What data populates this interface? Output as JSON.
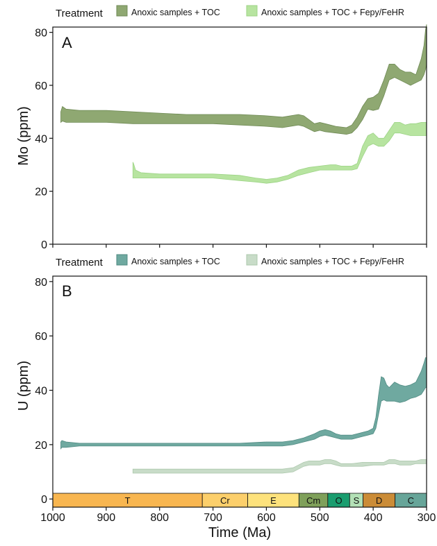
{
  "colors": {
    "mo_toc": "#8fa872",
    "mo_toc_stroke": "#6f8a55",
    "mo_fe": "#b7e4a0",
    "mo_fe_stroke": "#9cd385",
    "u_toc": "#6fa9a0",
    "u_toc_stroke": "#4f8a82",
    "u_fe": "#c8dcc8",
    "u_fe_stroke": "#adc8ad"
  },
  "chart_data": [
    {
      "type": "area",
      "panel_label": "A",
      "legend_title": "Treatment",
      "legend_position": "top",
      "ylabel": "Mo (ppm)",
      "xlim": [
        1000,
        300
      ],
      "ylim": [
        0,
        82
      ],
      "yticks": [
        "0",
        "20",
        "40",
        "60",
        "80"
      ],
      "ytick_values": [
        0,
        20,
        40,
        60,
        80
      ],
      "xtick_values": [
        1000,
        900,
        800,
        700,
        600,
        500,
        400,
        300
      ],
      "grid": false,
      "series": [
        {
          "name": "Anoxic samples + TOC",
          "color_key": "mo_toc",
          "x": [
            985,
            982,
            975,
            950,
            900,
            850,
            800,
            750,
            700,
            650,
            600,
            570,
            540,
            530,
            520,
            510,
            500,
            490,
            470,
            450,
            440,
            430,
            420,
            410,
            400,
            390,
            380,
            370,
            360,
            350,
            340,
            330,
            320,
            310,
            305,
            302,
            300
          ],
          "upper": [
            50,
            52,
            51,
            50.5,
            50.5,
            50,
            49.5,
            49,
            49,
            49,
            48.5,
            48,
            49,
            48.5,
            47,
            45.5,
            46,
            45.5,
            44.5,
            44,
            45,
            48,
            52,
            55,
            55.5,
            57,
            62,
            68,
            68,
            66,
            65,
            65,
            64,
            70,
            75,
            81,
            83
          ],
          "lower": [
            46,
            46.5,
            46,
            46,
            46,
            45.5,
            45.5,
            45.5,
            45.5,
            45,
            44.5,
            44,
            45,
            44.5,
            43.5,
            42.5,
            43,
            42.5,
            42,
            41.5,
            42,
            44,
            47,
            51,
            50.5,
            51,
            56,
            62,
            63,
            62,
            61,
            60,
            61,
            62,
            64,
            66,
            68
          ]
        },
        {
          "name": "Anoxic samples + TOC + Fepy/FeHR",
          "color_key": "mo_fe",
          "x": [
            850,
            848,
            845,
            835,
            800,
            750,
            700,
            650,
            620,
            600,
            580,
            560,
            540,
            520,
            500,
            480,
            470,
            460,
            450,
            440,
            430,
            420,
            410,
            400,
            390,
            380,
            370,
            360,
            350,
            340,
            330,
            320,
            310,
            300
          ],
          "upper": [
            31,
            30,
            28,
            27,
            26.5,
            26.5,
            26.5,
            26,
            25,
            24.5,
            25,
            26,
            28,
            29,
            29.5,
            30,
            30,
            29.5,
            29.5,
            29.5,
            30.5,
            37,
            41,
            42,
            40,
            40,
            43,
            46,
            46,
            45,
            45.5,
            45.5,
            46,
            46
          ],
          "lower": [
            25,
            25,
            25,
            25,
            25,
            25,
            25,
            24,
            23.5,
            23,
            23.5,
            24.5,
            26,
            27,
            28,
            28,
            28,
            28,
            28,
            28,
            28.5,
            33,
            37,
            38,
            37,
            37,
            39,
            42,
            42,
            41.5,
            41,
            41,
            41,
            41
          ]
        }
      ]
    },
    {
      "type": "area",
      "panel_label": "B",
      "legend_title": "Treatment",
      "legend_position": "top",
      "ylabel": "U (ppm)",
      "xlabel": "Time (Ma)",
      "xlim": [
        1000,
        300
      ],
      "ylim": [
        -3,
        82
      ],
      "yticks": [
        "0",
        "20",
        "40",
        "60",
        "80"
      ],
      "ytick_values": [
        0,
        20,
        40,
        60,
        80
      ],
      "xticks": [
        "1000",
        "900",
        "800",
        "700",
        "600",
        "500",
        "400",
        "300"
      ],
      "xtick_values": [
        1000,
        900,
        800,
        700,
        600,
        500,
        400,
        300
      ],
      "grid": false,
      "series": [
        {
          "name": "Anoxic samples + TOC",
          "color_key": "u_toc",
          "x": [
            985,
            983,
            975,
            950,
            900,
            850,
            800,
            750,
            700,
            650,
            600,
            570,
            550,
            530,
            510,
            500,
            490,
            480,
            470,
            460,
            450,
            440,
            430,
            420,
            410,
            400,
            395,
            390,
            385,
            380,
            375,
            370,
            360,
            350,
            340,
            330,
            320,
            310,
            305,
            302,
            300
          ],
          "upper": [
            21,
            21.5,
            21,
            20.5,
            20.5,
            20.5,
            20.5,
            20.5,
            20.5,
            20.5,
            21,
            21,
            21.5,
            22.5,
            24,
            25,
            25.5,
            25,
            24,
            23.5,
            23.5,
            23.5,
            24,
            24.5,
            25,
            26,
            30,
            38,
            45,
            44.5,
            42,
            41,
            43,
            42,
            41.5,
            42,
            43,
            47,
            50,
            52,
            52
          ],
          "lower": [
            18.5,
            19,
            19,
            19.5,
            19.5,
            19.5,
            19.5,
            19.5,
            19.5,
            19.5,
            19.5,
            19.5,
            20,
            21,
            22,
            23,
            23.5,
            23,
            22.5,
            22,
            22,
            22,
            22.5,
            23,
            23.5,
            24,
            26,
            31,
            36,
            36.5,
            36,
            36,
            36,
            35.5,
            36,
            37,
            37.5,
            38.5,
            40,
            41,
            41
          ]
        },
        {
          "name": "Anoxic samples + TOC + Fepy/FeHR",
          "color_key": "u_fe",
          "x": [
            850,
            848,
            800,
            750,
            700,
            650,
            600,
            570,
            550,
            540,
            530,
            520,
            510,
            500,
            490,
            480,
            470,
            460,
            440,
            420,
            400,
            380,
            370,
            360,
            350,
            340,
            330,
            320,
            310,
            300
          ],
          "upper": [
            11,
            11,
            11,
            11,
            11,
            11,
            11,
            11,
            11.5,
            12.5,
            13.5,
            14,
            14,
            14,
            14.5,
            14.5,
            14,
            13,
            13,
            13.5,
            13.5,
            13.5,
            14.5,
            14.5,
            14,
            14,
            14,
            14,
            14.5,
            14.5
          ],
          "lower": [
            9.5,
            9.5,
            9.5,
            9.5,
            9.5,
            9.5,
            9.5,
            9.5,
            10,
            11,
            12,
            12.5,
            12.5,
            12.5,
            13,
            13,
            12.5,
            12,
            12,
            12,
            12.5,
            12.5,
            13,
            13,
            12.5,
            12.5,
            12.5,
            13,
            13,
            13
          ]
        }
      ],
      "timescale": [
        {
          "label": "T",
          "start": 1000,
          "end": 720,
          "color": "#f8b650"
        },
        {
          "label": "Cr",
          "start": 720,
          "end": 635,
          "color": "#fccf6b"
        },
        {
          "label": "E",
          "start": 635,
          "end": 539,
          "color": "#fde27c"
        },
        {
          "label": "Cm",
          "start": 539,
          "end": 485,
          "color": "#7fa05a"
        },
        {
          "label": "O",
          "start": 485,
          "end": 444,
          "color": "#1a9d6f"
        },
        {
          "label": "S",
          "start": 444,
          "end": 419,
          "color": "#b3e1b6"
        },
        {
          "label": "D",
          "start": 419,
          "end": 359,
          "color": "#cb8c37"
        },
        {
          "label": "C",
          "start": 359,
          "end": 300,
          "color": "#67a599"
        }
      ]
    }
  ]
}
